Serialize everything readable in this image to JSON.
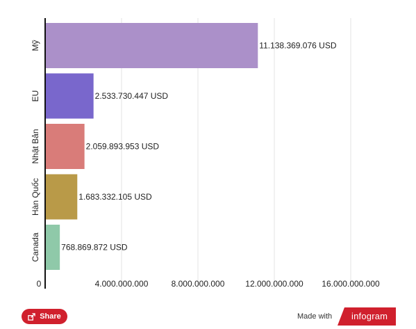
{
  "chart_data": {
    "type": "bar",
    "orientation": "horizontal",
    "categories": [
      "Mỹ",
      "EU",
      "Nhật Bản",
      "Hàn Quốc",
      "Canada"
    ],
    "values": [
      11138369076,
      2533730447,
      2059893953,
      1683332105,
      768869872
    ],
    "value_labels": [
      "11.138.369.076 USD",
      "2.533.730.447 USD",
      "2.059.893.953 USD",
      "1.683.332.105 USD",
      "768.869.872 USD"
    ],
    "colors": [
      "#ab90c9",
      "#7967cc",
      "#d97c79",
      "#b99a48",
      "#8fc9a9"
    ],
    "xlim": [
      0,
      18000000000
    ],
    "xticks": [
      0,
      4000000000,
      8000000000,
      12000000000,
      16000000000
    ],
    "xtick_labels": [
      "0",
      "4.000.000.000",
      "8.000.000.000",
      "12.000.000.000",
      "16.000.000.000"
    ],
    "grid": true,
    "title": "",
    "xlabel": "",
    "ylabel": ""
  },
  "footer": {
    "share_label": "Share",
    "made_with": "Made with",
    "brand": "infogram",
    "accent": "#d0202d"
  }
}
